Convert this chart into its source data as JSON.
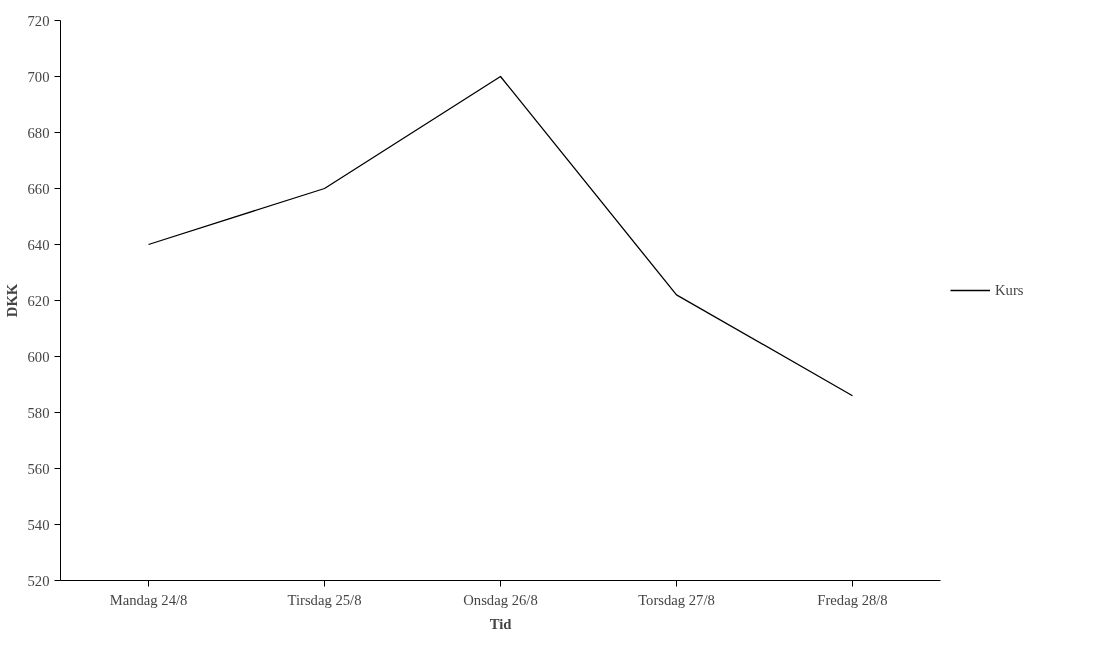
{
  "chart_data": {
    "type": "line",
    "xlabel": "Tid",
    "ylabel": "DKK",
    "categories": [
      "Mandag 24/8",
      "Tirsdag 25/8",
      "Onsdag 26/8",
      "Torsdag 27/8",
      "Fredag 28/8"
    ],
    "series": [
      {
        "name": "Kurs",
        "color": "#000000",
        "values": [
          640,
          660,
          700,
          622,
          586
        ]
      }
    ],
    "ylim": [
      520,
      720
    ],
    "yticks": [
      520,
      540,
      560,
      580,
      600,
      620,
      640,
      660,
      680,
      700,
      720
    ],
    "grid": false,
    "legend": "right",
    "marker": "none",
    "line_style": "solid"
  }
}
